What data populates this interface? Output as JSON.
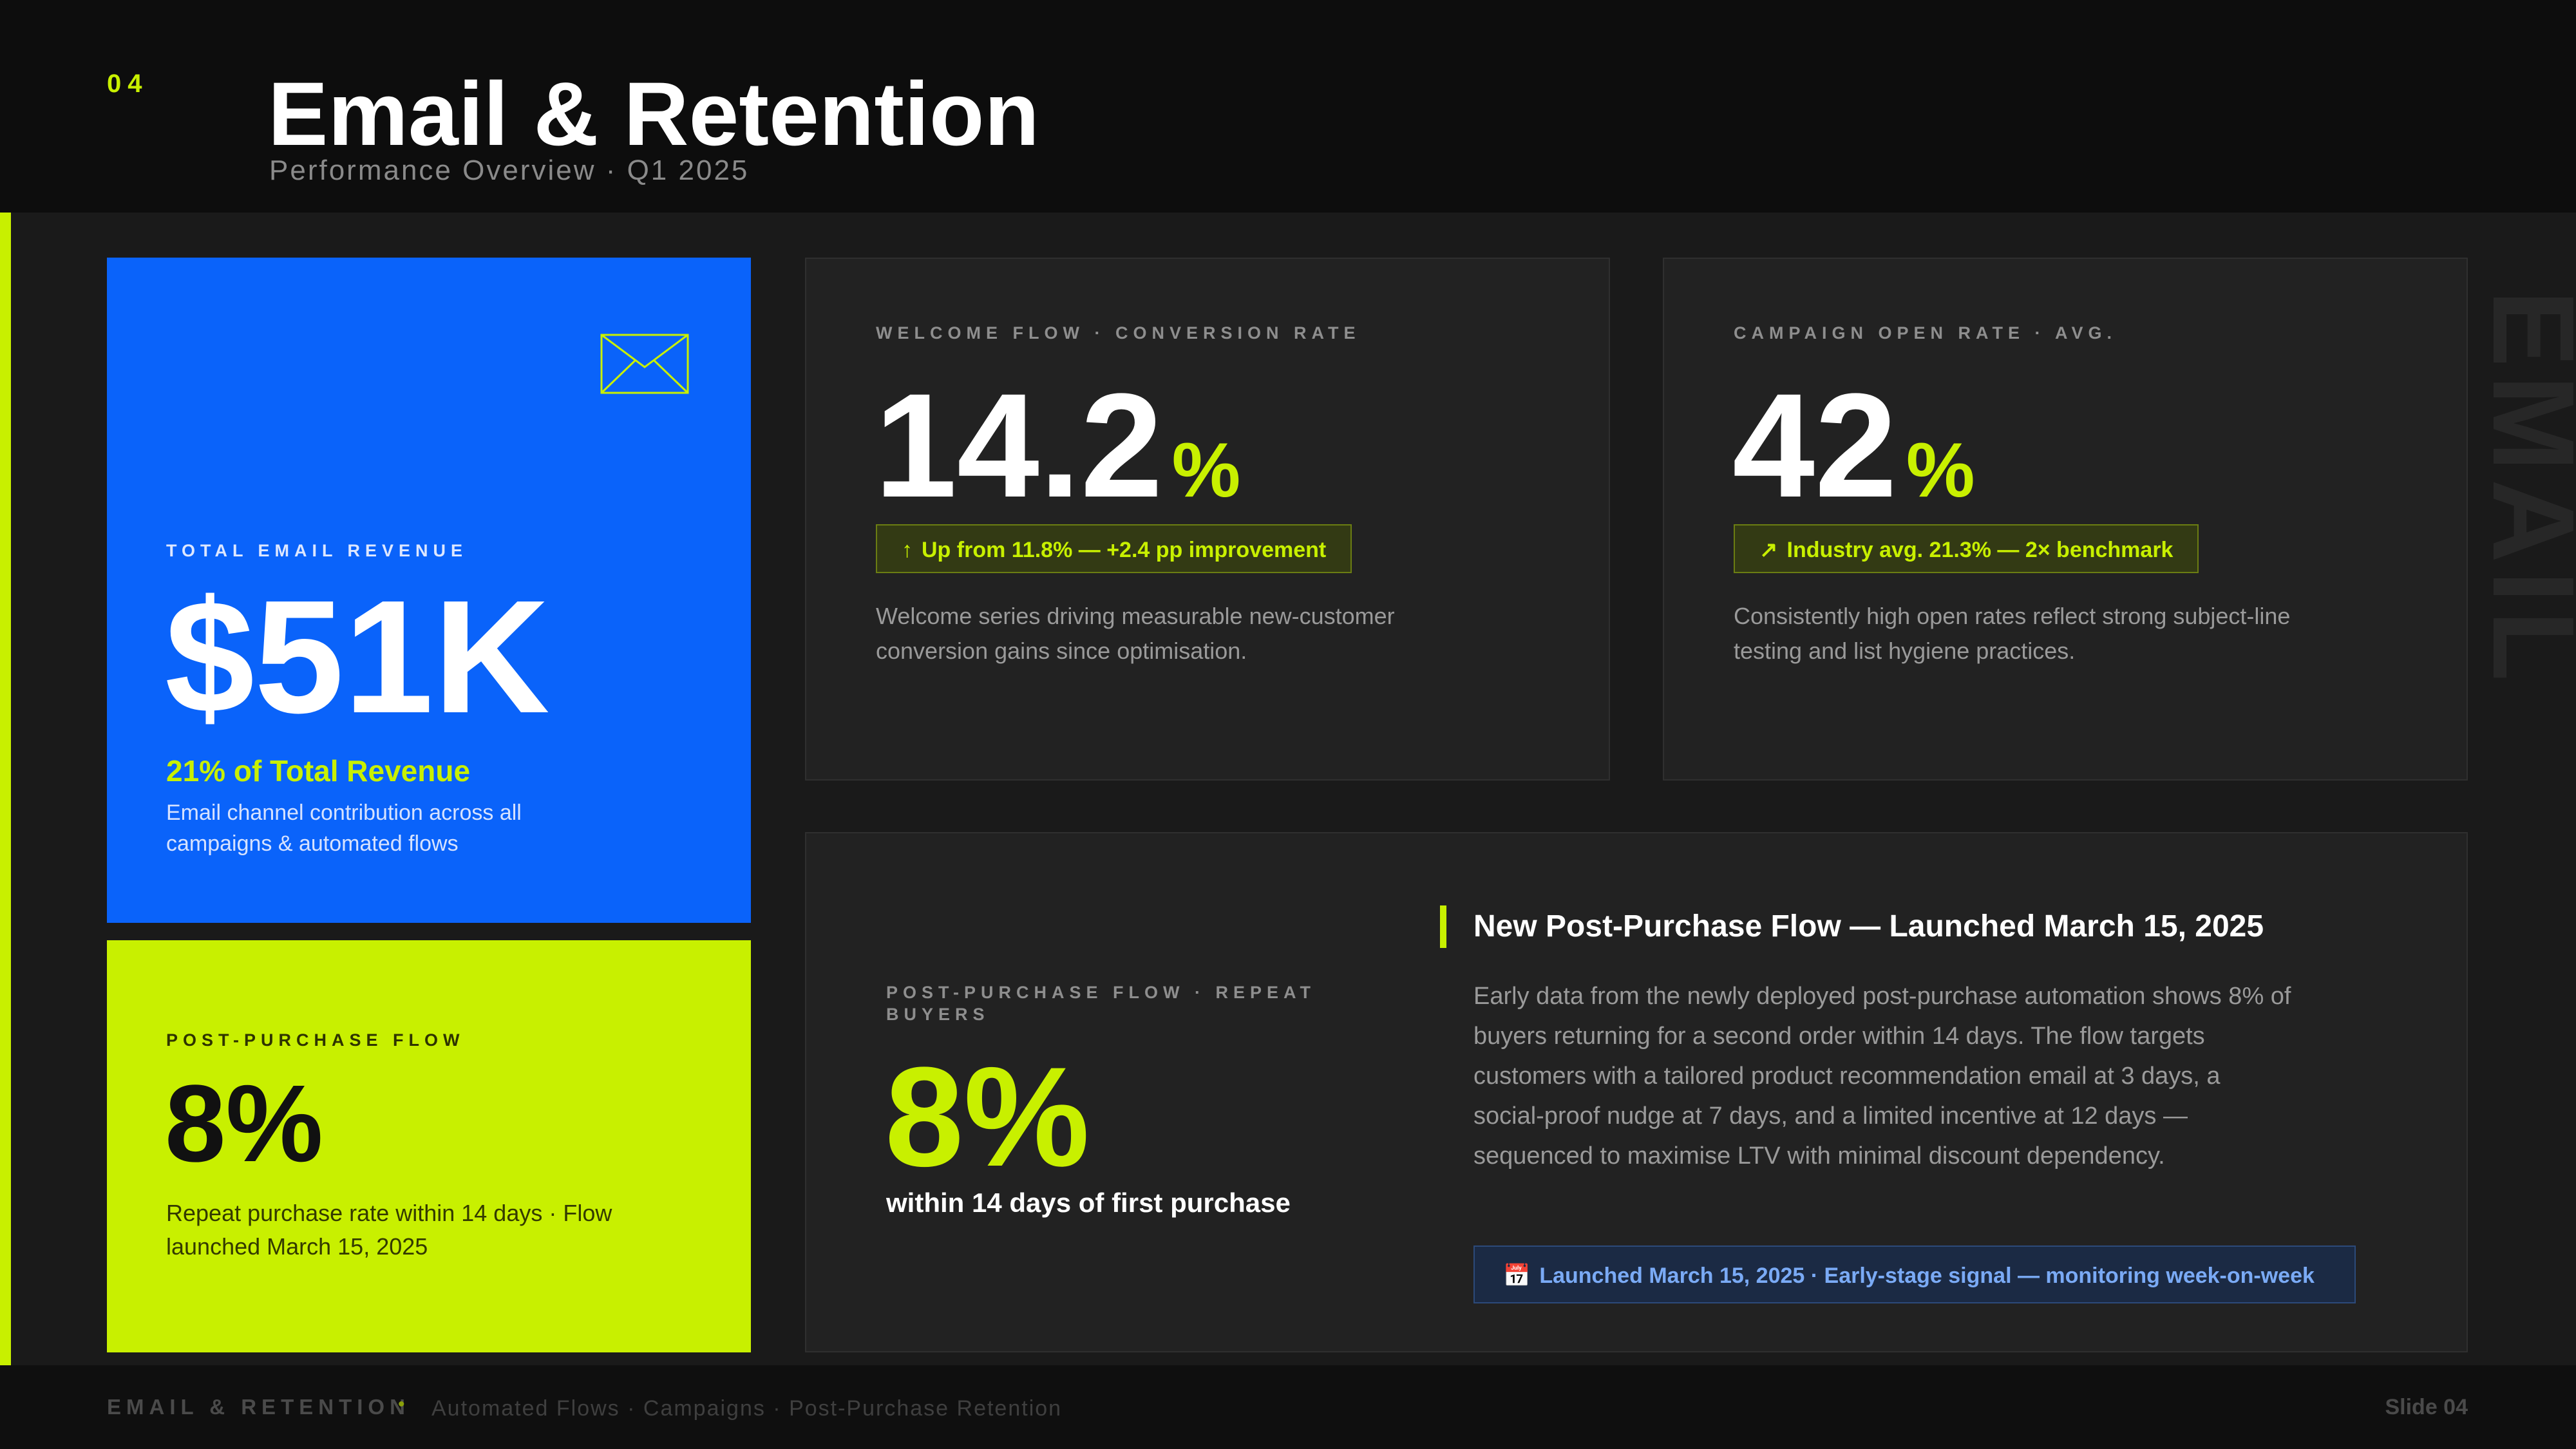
{
  "header": {
    "slide_number": "04",
    "title": "Email & Retention",
    "subtitle": "Performance Overview · Q1 2025"
  },
  "revenue_card": {
    "icon": "envelope-icon",
    "label": "TOTAL EMAIL REVENUE",
    "value": "$51K",
    "share": "21% of Total Revenue",
    "description": "Email channel contribution across all campaigns & automated flows",
    "color": "#0a63fa"
  },
  "post_purchase_card": {
    "label": "POST-PURCHASE FLOW",
    "value": "8%",
    "description": "Repeat purchase rate within 14 days · Flow launched March 15, 2025",
    "color": "#c8f000"
  },
  "welcome_card": {
    "label": "WELCOME FLOW · CONVERSION RATE",
    "value": "14.2",
    "unit": "%",
    "badge_icon": "↑",
    "badge": "Up from 11.8% — +2.4 pp improvement",
    "description": "Welcome series driving measurable new-customer conversion gains since optimisation."
  },
  "open_rate_card": {
    "label": "CAMPAIGN OPEN RATE · AVG.",
    "value": "42",
    "unit": "%",
    "badge_icon": "↗",
    "badge": "Industry avg. 21.3% — 2× benchmark",
    "description": "Consistently high open rates reflect strong subject-line testing and list hygiene practices."
  },
  "watermark": "EMAIL",
  "post_purchase_detail": {
    "label": "POST-PURCHASE FLOW · REPEAT BUYERS",
    "value": "8%",
    "subtext": "within 14 days of first purchase",
    "headline": "New Post-Purchase Flow — Launched March 15, 2025",
    "body": "Early data from the newly deployed post-purchase automation shows 8% of buyers returning for a second order within 14 days. The flow targets customers with a tailored product recommendation email at 3 days, a social-proof nudge at 7 days, and a limited incentive at 12 days — sequenced to maximise LTV with minimal discount dependency.",
    "badge_icon": "📅",
    "badge": "Launched March 15, 2025 · Early-stage signal — monitoring week-on-week"
  },
  "footer": {
    "section": "EMAIL & RETENTION",
    "separator": "•",
    "topics": "Automated Flows · Campaigns · Post-Purchase Retention",
    "slide": "Slide 04"
  },
  "colors": {
    "accent": "#c8f000",
    "blue": "#0a63fa",
    "background": "#1a1a1a"
  }
}
